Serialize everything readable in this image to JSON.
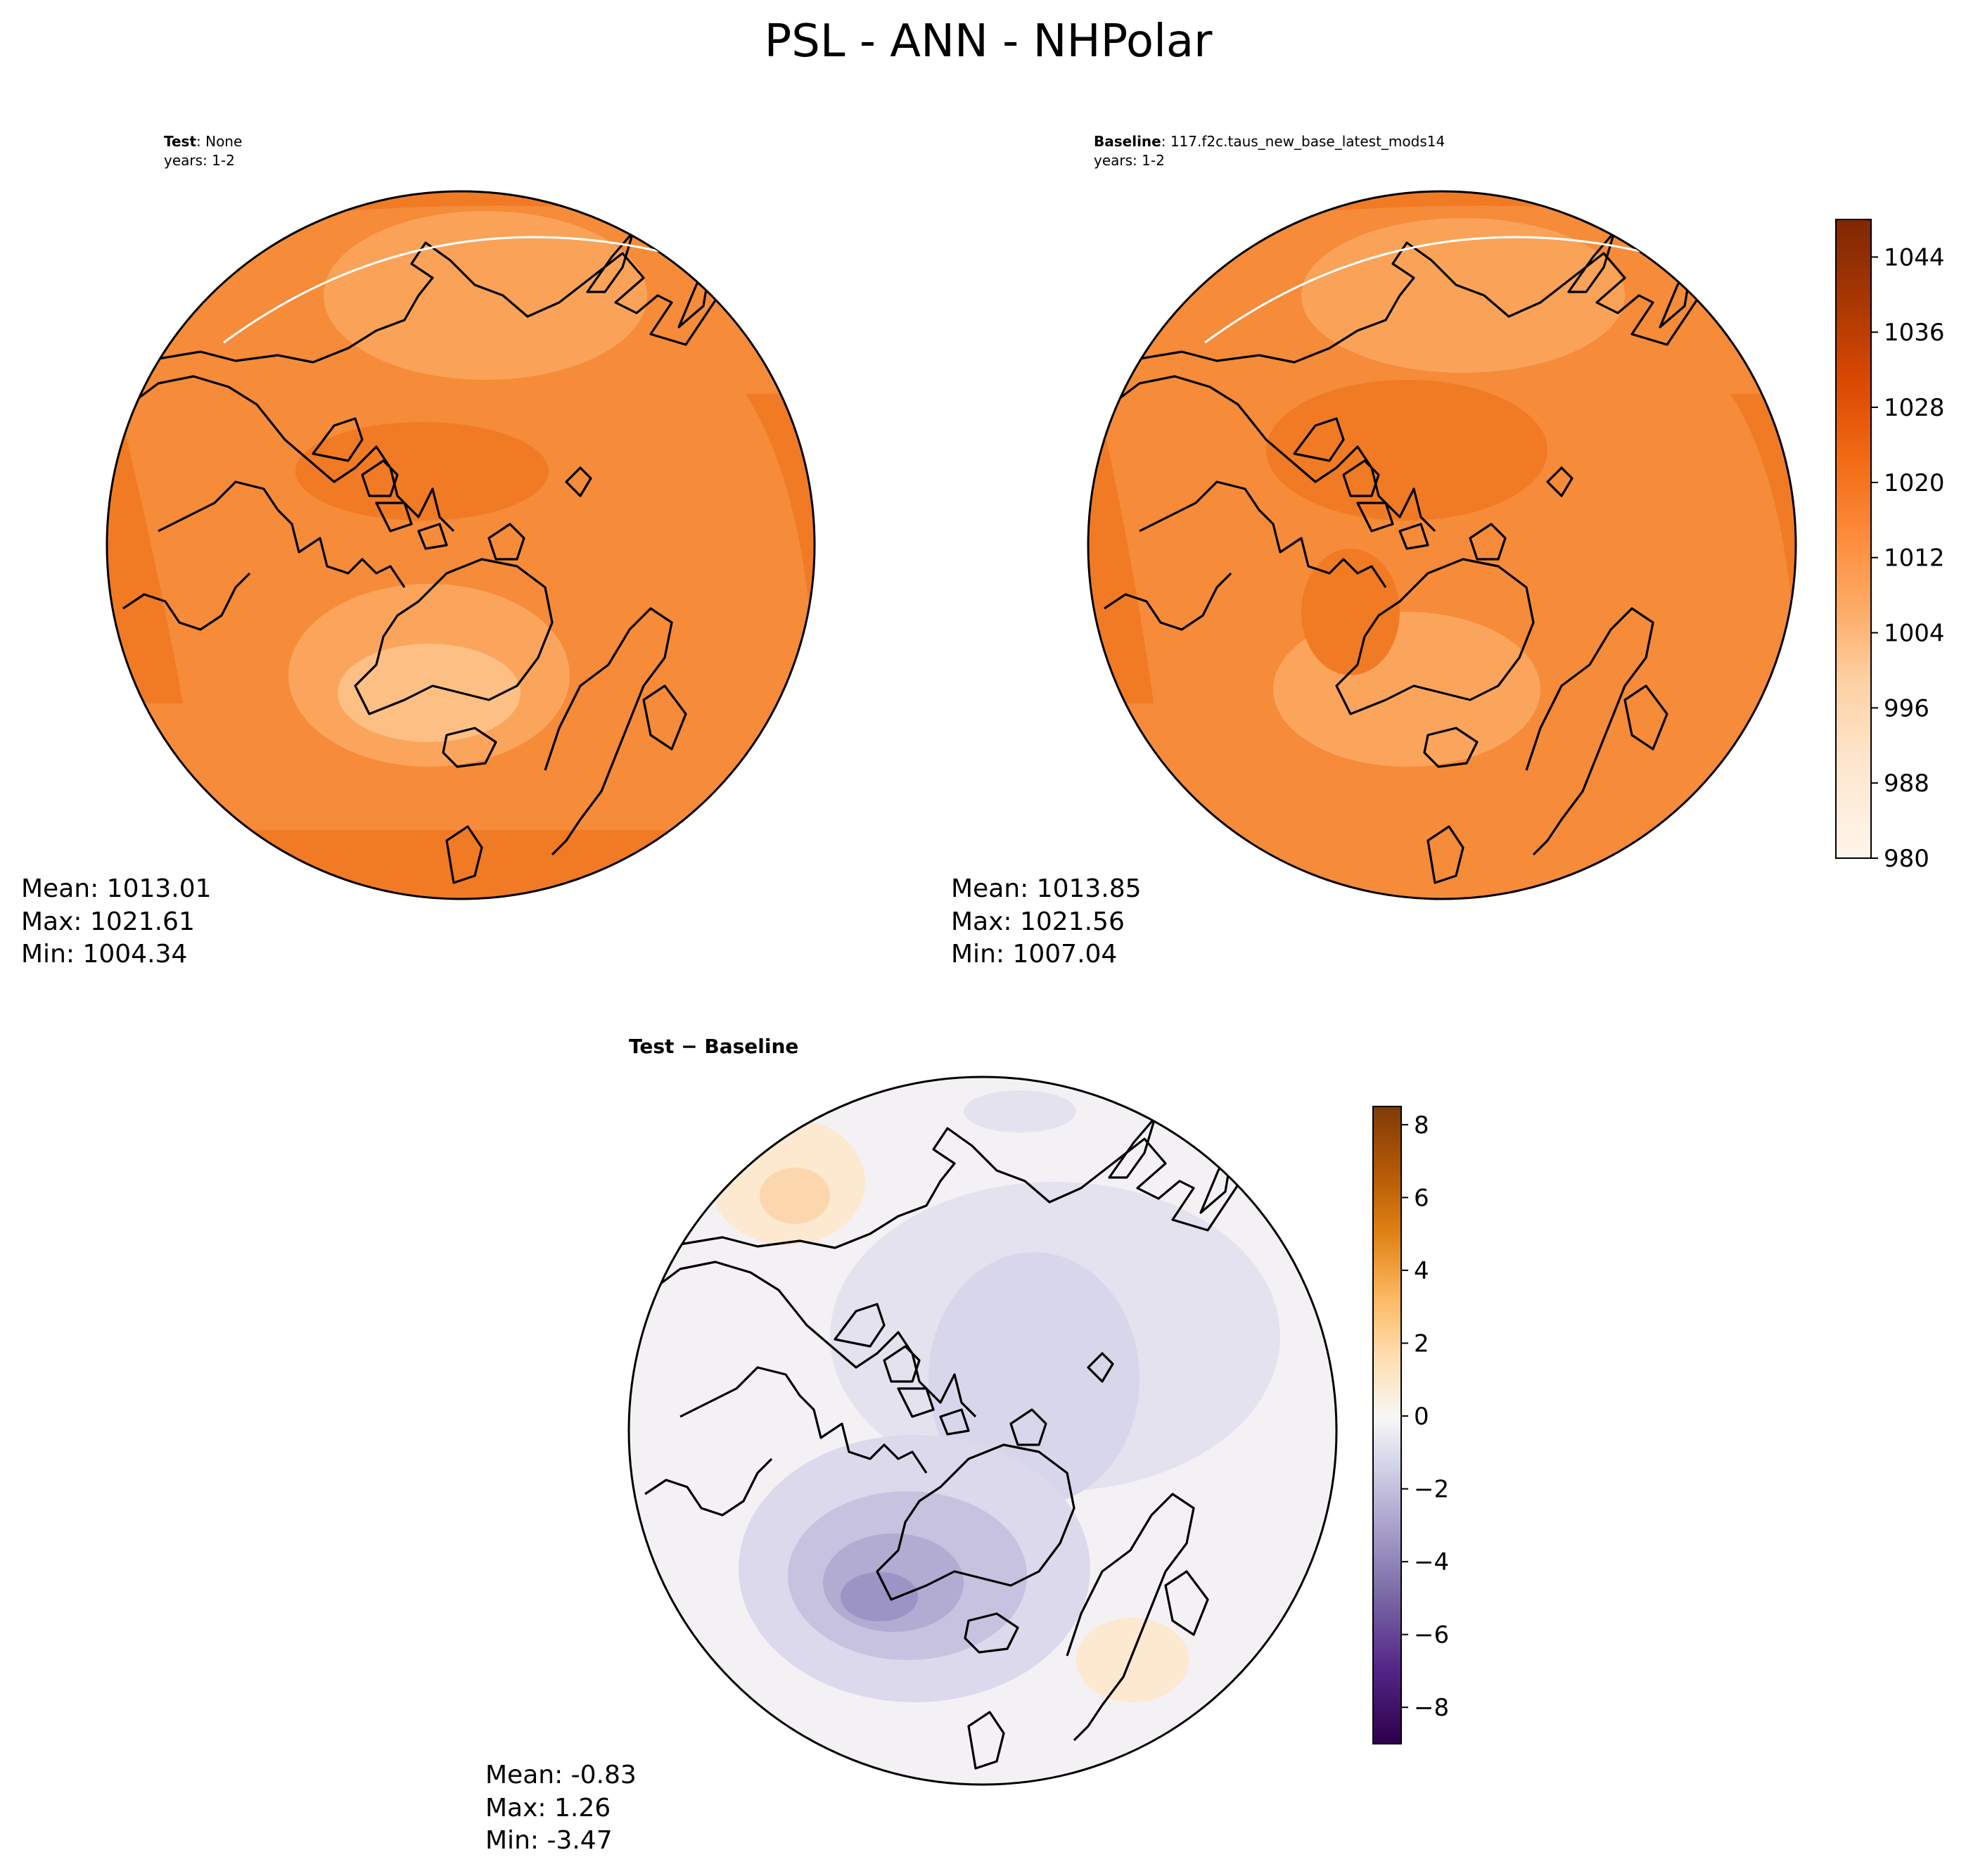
{
  "title": "PSL - ANN - NHPolar",
  "panels": [
    {
      "id": "test",
      "label_bold": "Test",
      "label_rest": ": None",
      "years": "years: 1-2",
      "stats": {
        "mean": "Mean: 1013.01",
        "max": "Max: 1021.61",
        "min": "Min: 1004.34"
      }
    },
    {
      "id": "baseline",
      "label_bold": "Baseline",
      "label_rest": ": 117.f2c.taus_new_base_latest_mods14",
      "years": "years: 1-2",
      "stats": {
        "mean": "Mean: 1013.85",
        "max": "Max: 1021.56",
        "min": "Min: 1007.04"
      }
    },
    {
      "id": "diff",
      "label_bold": "Test − Baseline",
      "label_rest": "",
      "years": "",
      "stats": {
        "mean": "Mean: -0.83",
        "max": "Max:  1.26",
        "min": "Min: -3.47"
      }
    }
  ],
  "colorbars": {
    "main": {
      "range": [
        980,
        1048
      ],
      "ticks": [
        "980",
        "988",
        "996",
        "1004",
        "1012",
        "1020",
        "1028",
        "1036",
        "1044"
      ],
      "tick_values": [
        980,
        988,
        996,
        1004,
        1012,
        1020,
        1028,
        1036,
        1044
      ],
      "colormap": "Oranges",
      "color_stops": [
        "#fff5eb",
        "#fee6ce",
        "#fdd0a2",
        "#fdae6b",
        "#fd8d3c",
        "#f16913",
        "#d94801",
        "#a63603",
        "#7f2704"
      ]
    },
    "diff": {
      "range": [
        -9,
        8.5
      ],
      "ticks": [
        "8",
        "6",
        "4",
        "2",
        "0",
        "−2",
        "−4",
        "−6",
        "−8"
      ],
      "tick_values": [
        8,
        6,
        4,
        2,
        0,
        -2,
        -4,
        -6,
        -8
      ],
      "colormap": "PuOr_r",
      "color_stops": [
        "#2d004b",
        "#542788",
        "#8073ac",
        "#b2abd2",
        "#d8daeb",
        "#f7f7f7",
        "#fee0b6",
        "#fdb863",
        "#e08214",
        "#b35806",
        "#7f3b08"
      ]
    }
  },
  "colors": {
    "test_fill": "#f68b3a",
    "baseline_fill": "#f68b3a",
    "diff_fill": "#e6e6f2",
    "coast": "#000000"
  }
}
